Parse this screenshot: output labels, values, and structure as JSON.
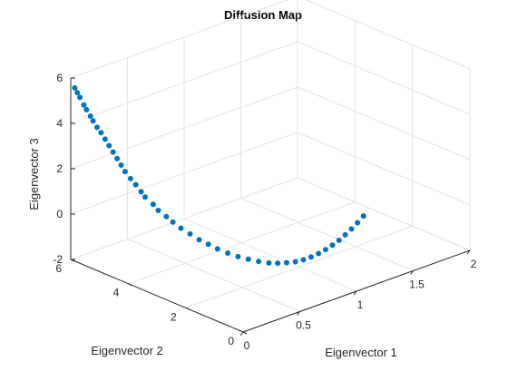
{
  "chart_data": {
    "type": "scatter",
    "title": "Diffusion Map",
    "xlabel": "Eigenvector 1",
    "ylabel": "Eigenvector 2",
    "zlabel": "Eigenvector 3",
    "xlim": [
      0,
      2
    ],
    "ylim": [
      0,
      6
    ],
    "zlim": [
      -2,
      6
    ],
    "xticks": [
      "0",
      "0.5",
      "1",
      "1.5",
      "2"
    ],
    "yticks": [
      "0",
      "2",
      "4",
      "6"
    ],
    "zticks": [
      "-2",
      "0",
      "2",
      "4",
      "6"
    ],
    "grid": true,
    "marker_color": "#0072BD",
    "series": [
      {
        "points": [
          [
            0.01,
            5.9,
            5.6
          ],
          [
            0.02,
            5.85,
            5.4
          ],
          [
            0.03,
            5.8,
            5.2
          ],
          [
            0.04,
            5.7,
            4.9
          ],
          [
            0.05,
            5.65,
            4.7
          ],
          [
            0.06,
            5.55,
            4.45
          ],
          [
            0.07,
            5.5,
            4.25
          ],
          [
            0.08,
            5.4,
            4.0
          ],
          [
            0.09,
            5.3,
            3.8
          ],
          [
            0.1,
            5.2,
            3.55
          ],
          [
            0.11,
            5.1,
            3.3
          ],
          [
            0.12,
            5.0,
            3.05
          ],
          [
            0.13,
            4.9,
            2.8
          ],
          [
            0.14,
            4.8,
            2.55
          ],
          [
            0.15,
            4.7,
            2.3
          ],
          [
            0.16,
            4.55,
            2.05
          ],
          [
            0.18,
            4.45,
            1.8
          ],
          [
            0.19,
            4.3,
            1.55
          ],
          [
            0.2,
            4.2,
            1.35
          ],
          [
            0.22,
            4.0,
            1.1
          ],
          [
            0.24,
            3.9,
            0.85
          ],
          [
            0.26,
            3.7,
            0.65
          ],
          [
            0.28,
            3.55,
            0.45
          ],
          [
            0.3,
            3.35,
            0.25
          ],
          [
            0.33,
            3.15,
            0.05
          ],
          [
            0.36,
            2.95,
            -0.15
          ],
          [
            0.39,
            2.75,
            -0.3
          ],
          [
            0.42,
            2.55,
            -0.45
          ],
          [
            0.46,
            2.35,
            -0.6
          ],
          [
            0.5,
            2.15,
            -0.72
          ],
          [
            0.54,
            1.95,
            -0.8
          ],
          [
            0.58,
            1.75,
            -0.86
          ],
          [
            0.62,
            1.55,
            -0.9
          ],
          [
            0.66,
            1.4,
            -0.9
          ],
          [
            0.7,
            1.25,
            -0.87
          ],
          [
            0.74,
            1.1,
            -0.82
          ],
          [
            0.78,
            0.98,
            -0.74
          ],
          [
            0.82,
            0.87,
            -0.63
          ],
          [
            0.86,
            0.77,
            -0.5
          ],
          [
            0.9,
            0.68,
            -0.35
          ],
          [
            0.94,
            0.6,
            -0.18
          ],
          [
            0.98,
            0.53,
            0.0
          ],
          [
            1.02,
            0.47,
            0.2
          ],
          [
            1.06,
            0.41,
            0.42
          ],
          [
            1.1,
            0.36,
            0.65
          ],
          [
            1.14,
            0.31,
            0.9
          ]
        ]
      }
    ]
  }
}
